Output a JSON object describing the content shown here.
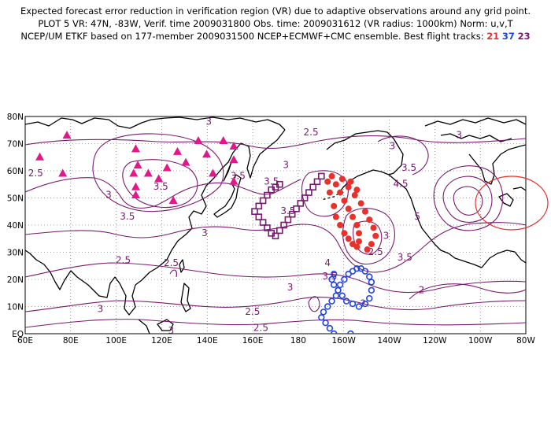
{
  "title": {
    "line1": "Expected forecast error reduction in verification region (VR) due to adaptive observations around any grid point.",
    "line2": "PLOT 5 VR: 47N, -83W, Verif. time 2009031800 Obs. time: 2009031612 (VR radius: 1000km) Norm: u,v,T",
    "line3_prefix": "NCEP/UM ETKF based on 177-member 2009031500 NCEP+ECMWF+CMC ensemble. Best flight tracks:",
    "tracks": [
      {
        "label": "21",
        "color": "#e8312b"
      },
      {
        "label": "37",
        "color": "#2244dd"
      },
      {
        "label": "23",
        "color": "#7a1a6e"
      }
    ]
  },
  "axes": {
    "lon_labels": [
      "60E",
      "80E",
      "100E",
      "120E",
      "140E",
      "160E",
      "180",
      "160W",
      "140W",
      "120W",
      "100W",
      "80W"
    ],
    "lat_labels": [
      "EQ",
      "10N",
      "20N",
      "30N",
      "40N",
      "50N",
      "60N",
      "70N",
      "80N"
    ]
  },
  "contour_labels": [
    {
      "text": "3",
      "lon": 148,
      "lat": 77
    },
    {
      "text": "2.5",
      "lon": 197,
      "lat": 73
    },
    {
      "text": "3",
      "lon": 236,
      "lat": 68
    },
    {
      "text": "3",
      "lon": 268,
      "lat": 72
    },
    {
      "text": "2.5",
      "lon": 65,
      "lat": 58
    },
    {
      "text": "3",
      "lon": 185,
      "lat": 61
    },
    {
      "text": "3.5",
      "lon": 162,
      "lat": 57
    },
    {
      "text": "3.5",
      "lon": 178,
      "lat": 55
    },
    {
      "text": "3.5",
      "lon": 125,
      "lat": 53
    },
    {
      "text": "3",
      "lon": 100,
      "lat": 50
    },
    {
      "text": "3.5",
      "lon": 244,
      "lat": 60
    },
    {
      "text": "4.5",
      "lon": 240,
      "lat": 54
    },
    {
      "text": "5",
      "lon": 248,
      "lat": 42
    },
    {
      "text": "3.5",
      "lon": 109,
      "lat": 42
    },
    {
      "text": "3.5",
      "lon": 186,
      "lat": 44
    },
    {
      "text": "3",
      "lon": 146,
      "lat": 36
    },
    {
      "text": "3",
      "lon": 233,
      "lat": 35
    },
    {
      "text": "2.5",
      "lon": 56,
      "lat": 31
    },
    {
      "text": "2.5",
      "lon": 107,
      "lat": 26
    },
    {
      "text": "3.5",
      "lon": 242,
      "lat": 27
    },
    {
      "text": "2.5",
      "lon": 130,
      "lat": 25
    },
    {
      "text": "2.5",
      "lon": 228,
      "lat": 29
    },
    {
      "text": "4",
      "lon": 205,
      "lat": 25
    },
    {
      "text": "3.5",
      "lon": 206,
      "lat": 20
    },
    {
      "text": "3",
      "lon": 187,
      "lat": 16
    },
    {
      "text": "2",
      "lon": 250,
      "lat": 15
    },
    {
      "text": "3",
      "lon": 96,
      "lat": 8
    },
    {
      "text": "2",
      "lon": 222,
      "lat": 10
    },
    {
      "text": "2.5",
      "lon": 169,
      "lat": 7
    },
    {
      "text": "2.5",
      "lon": 173,
      "lat": 1
    },
    {
      "text": "3",
      "lon": 130,
      "lat": 0
    }
  ],
  "triangle_color": "#e0188a",
  "triangles": [
    [
      67,
      65
    ],
    [
      80,
      73
    ],
    [
      78,
      59
    ],
    [
      113,
      68
    ],
    [
      114,
      62
    ],
    [
      112,
      59
    ],
    [
      113,
      54
    ],
    [
      113,
      51
    ],
    [
      119,
      59
    ],
    [
      124,
      57
    ],
    [
      128,
      61
    ],
    [
      133,
      67
    ],
    [
      137,
      63
    ],
    [
      143,
      71
    ],
    [
      147,
      66
    ],
    [
      150,
      59
    ],
    [
      155,
      71
    ],
    [
      160,
      69
    ],
    [
      160,
      64
    ],
    [
      160,
      56
    ],
    [
      131,
      49
    ]
  ],
  "tracks_points": {
    "red": {
      "color": "#e8312b",
      "points": [
        [
          -155,
          56
        ],
        [
          -154,
          52
        ],
        [
          -152,
          47
        ],
        [
          -151,
          43
        ],
        [
          -149,
          40
        ],
        [
          -147,
          37
        ],
        [
          -145,
          35
        ],
        [
          -143,
          33
        ],
        [
          -141,
          32
        ],
        [
          -140,
          34
        ],
        [
          -140,
          37
        ],
        [
          -141,
          40
        ],
        [
          -143,
          43
        ],
        [
          -145,
          46
        ],
        [
          -147,
          49
        ],
        [
          -149,
          52
        ],
        [
          -151,
          55
        ],
        [
          -153,
          58
        ],
        [
          -148,
          57
        ],
        [
          -145,
          54
        ],
        [
          -142,
          51
        ],
        [
          -139,
          48
        ],
        [
          -137,
          45
        ],
        [
          -135,
          42
        ],
        [
          -133,
          39
        ],
        [
          -132,
          36
        ],
        [
          -134,
          33
        ],
        [
          -136,
          31
        ],
        [
          -144,
          56
        ],
        [
          -141,
          53
        ]
      ]
    },
    "blue": {
      "color": "#2244dd",
      "points": [
        [
          -152,
          22
        ],
        [
          -153,
          20
        ],
        [
          -152,
          18
        ],
        [
          -150,
          16
        ],
        [
          -148,
          14
        ],
        [
          -146,
          12
        ],
        [
          -143,
          11
        ],
        [
          -140,
          10
        ],
        [
          -137,
          11
        ],
        [
          -135,
          13
        ],
        [
          -134,
          16
        ],
        [
          -134,
          19
        ],
        [
          -135,
          21
        ],
        [
          -137,
          23
        ],
        [
          -139,
          24
        ],
        [
          -141,
          24
        ],
        [
          -143,
          23
        ],
        [
          -145,
          22
        ],
        [
          -147,
          20
        ],
        [
          -149,
          18
        ],
        [
          -150,
          16
        ],
        [
          -151,
          14
        ],
        [
          -153,
          12
        ],
        [
          -155,
          10
        ],
        [
          -157,
          8
        ],
        [
          -158,
          6
        ],
        [
          -156,
          4
        ],
        [
          -154,
          2
        ],
        [
          -152,
          0
        ],
        [
          -150,
          -2
        ],
        [
          -148,
          -3
        ],
        [
          -146,
          -2
        ],
        [
          -144,
          0
        ]
      ]
    },
    "purple": {
      "color": "#7a1a6e",
      "points": [
        [
          -158,
          58
        ],
        [
          -160,
          56
        ],
        [
          -162,
          54
        ],
        [
          -164,
          52
        ],
        [
          -166,
          50
        ],
        [
          -168,
          48
        ],
        [
          -170,
          46
        ],
        [
          -172,
          44
        ],
        [
          -174,
          42
        ],
        [
          -176,
          40
        ],
        [
          -178,
          38
        ],
        [
          -180,
          36
        ],
        [
          178,
          37
        ],
        [
          176,
          39
        ],
        [
          174,
          41
        ],
        [
          172,
          43
        ],
        [
          170,
          45
        ],
        [
          172,
          47
        ],
        [
          174,
          49
        ],
        [
          176,
          51
        ],
        [
          178,
          53
        ],
        [
          -180,
          54
        ],
        [
          -178,
          55
        ]
      ]
    }
  }
}
